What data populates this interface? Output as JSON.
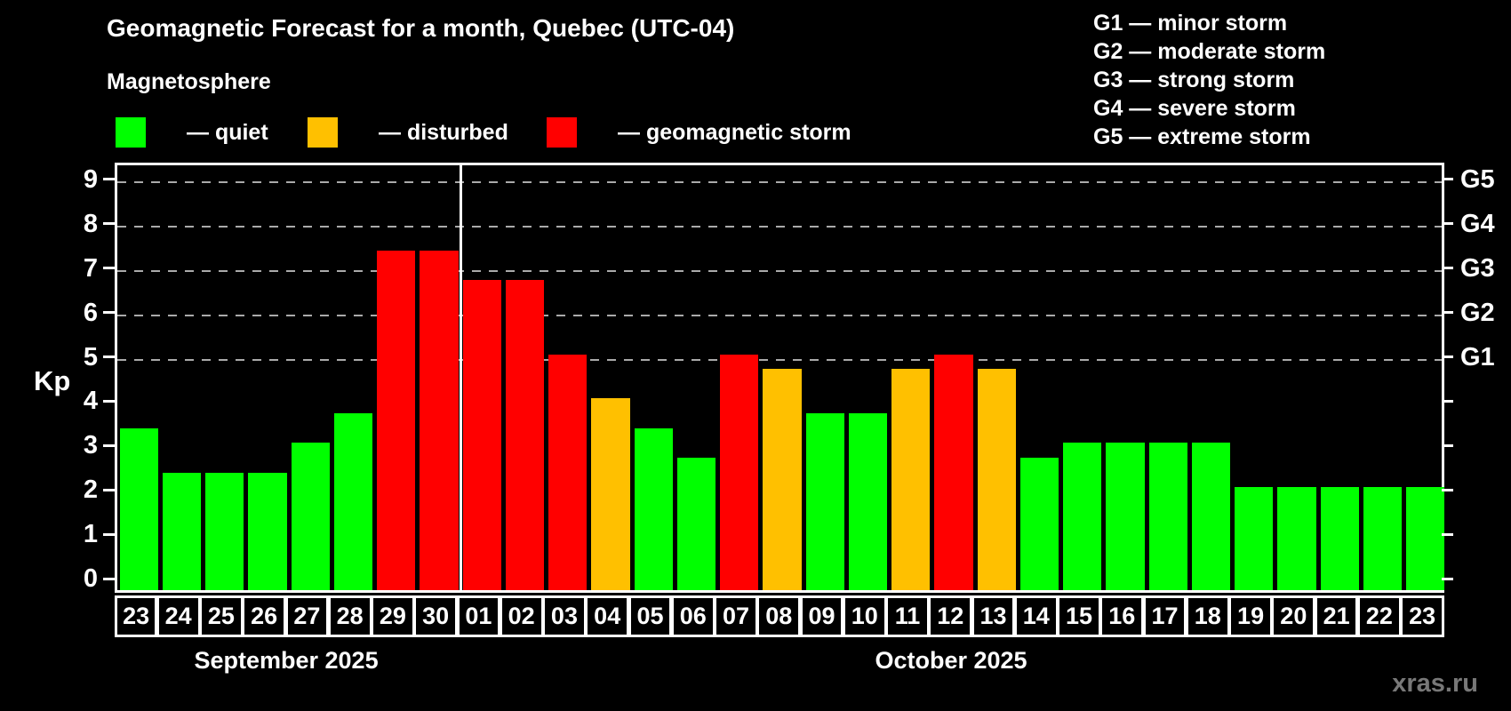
{
  "title": "Geomagnetic Forecast for a month, Quebec (UTC-04)",
  "subtitle": "Magnetosphere",
  "legend": [
    {
      "label": "— quiet",
      "color": "#00ff00"
    },
    {
      "label": "— disturbed",
      "color": "#ffc000"
    },
    {
      "label": "— geomagnetic storm",
      "color": "#ff0000"
    }
  ],
  "g_legend": [
    "G1 — minor storm",
    "G2 — moderate storm",
    "G3 — strong storm",
    "G4 — severe storm",
    "G5 — extreme storm"
  ],
  "ylabel": "Kp",
  "watermark": "xras.ru",
  "chart_data": {
    "type": "bar",
    "title": "Geomagnetic Forecast for a month, Quebec (UTC-04)",
    "ylabel": "Kp",
    "ylim": [
      -0.32,
      9.38
    ],
    "yticks": [
      0,
      1,
      2,
      3,
      4,
      5,
      6,
      7,
      8,
      9
    ],
    "grid_levels": [
      5,
      6,
      7,
      8,
      9
    ],
    "grid_on": true,
    "right_axis_labels": [
      {
        "kp": 5,
        "label": "G1"
      },
      {
        "kp": 6,
        "label": "G2"
      },
      {
        "kp": 7,
        "label": "G3"
      },
      {
        "kp": 8,
        "label": "G4"
      },
      {
        "kp": 9,
        "label": "G5"
      }
    ],
    "level_colors": {
      "quiet": "#00ff00",
      "disturbed": "#ffc000",
      "storm": "#ff0000"
    },
    "months": [
      {
        "label": "September 2025",
        "days": 8
      },
      {
        "label": "October 2025",
        "days": 23
      }
    ],
    "bars": [
      {
        "day": "23",
        "value": 3.33,
        "level": "quiet"
      },
      {
        "day": "24",
        "value": 2.33,
        "level": "quiet"
      },
      {
        "day": "25",
        "value": 2.33,
        "level": "quiet"
      },
      {
        "day": "26",
        "value": 2.33,
        "level": "quiet"
      },
      {
        "day": "27",
        "value": 3.0,
        "level": "quiet"
      },
      {
        "day": "28",
        "value": 3.67,
        "level": "quiet"
      },
      {
        "day": "29",
        "value": 7.33,
        "level": "storm"
      },
      {
        "day": "30",
        "value": 7.33,
        "level": "storm"
      },
      {
        "day": "01",
        "value": 6.67,
        "level": "storm"
      },
      {
        "day": "02",
        "value": 6.67,
        "level": "storm"
      },
      {
        "day": "03",
        "value": 5.0,
        "level": "storm"
      },
      {
        "day": "04",
        "value": 4.0,
        "level": "disturbed"
      },
      {
        "day": "05",
        "value": 3.33,
        "level": "quiet"
      },
      {
        "day": "06",
        "value": 2.67,
        "level": "quiet"
      },
      {
        "day": "07",
        "value": 5.0,
        "level": "storm"
      },
      {
        "day": "08",
        "value": 4.67,
        "level": "disturbed"
      },
      {
        "day": "09",
        "value": 3.67,
        "level": "quiet"
      },
      {
        "day": "10",
        "value": 3.67,
        "level": "quiet"
      },
      {
        "day": "11",
        "value": 4.67,
        "level": "disturbed"
      },
      {
        "day": "12",
        "value": 5.0,
        "level": "storm"
      },
      {
        "day": "13",
        "value": 4.67,
        "level": "disturbed"
      },
      {
        "day": "14",
        "value": 2.67,
        "level": "quiet"
      },
      {
        "day": "15",
        "value": 3.0,
        "level": "quiet"
      },
      {
        "day": "16",
        "value": 3.0,
        "level": "quiet"
      },
      {
        "day": "17",
        "value": 3.0,
        "level": "quiet"
      },
      {
        "day": "18",
        "value": 3.0,
        "level": "quiet"
      },
      {
        "day": "19",
        "value": 2.0,
        "level": "quiet"
      },
      {
        "day": "20",
        "value": 2.0,
        "level": "quiet"
      },
      {
        "day": "21",
        "value": 2.0,
        "level": "quiet"
      },
      {
        "day": "22",
        "value": 2.0,
        "level": "quiet"
      },
      {
        "day": "23",
        "value": 2.0,
        "level": "quiet"
      }
    ]
  }
}
